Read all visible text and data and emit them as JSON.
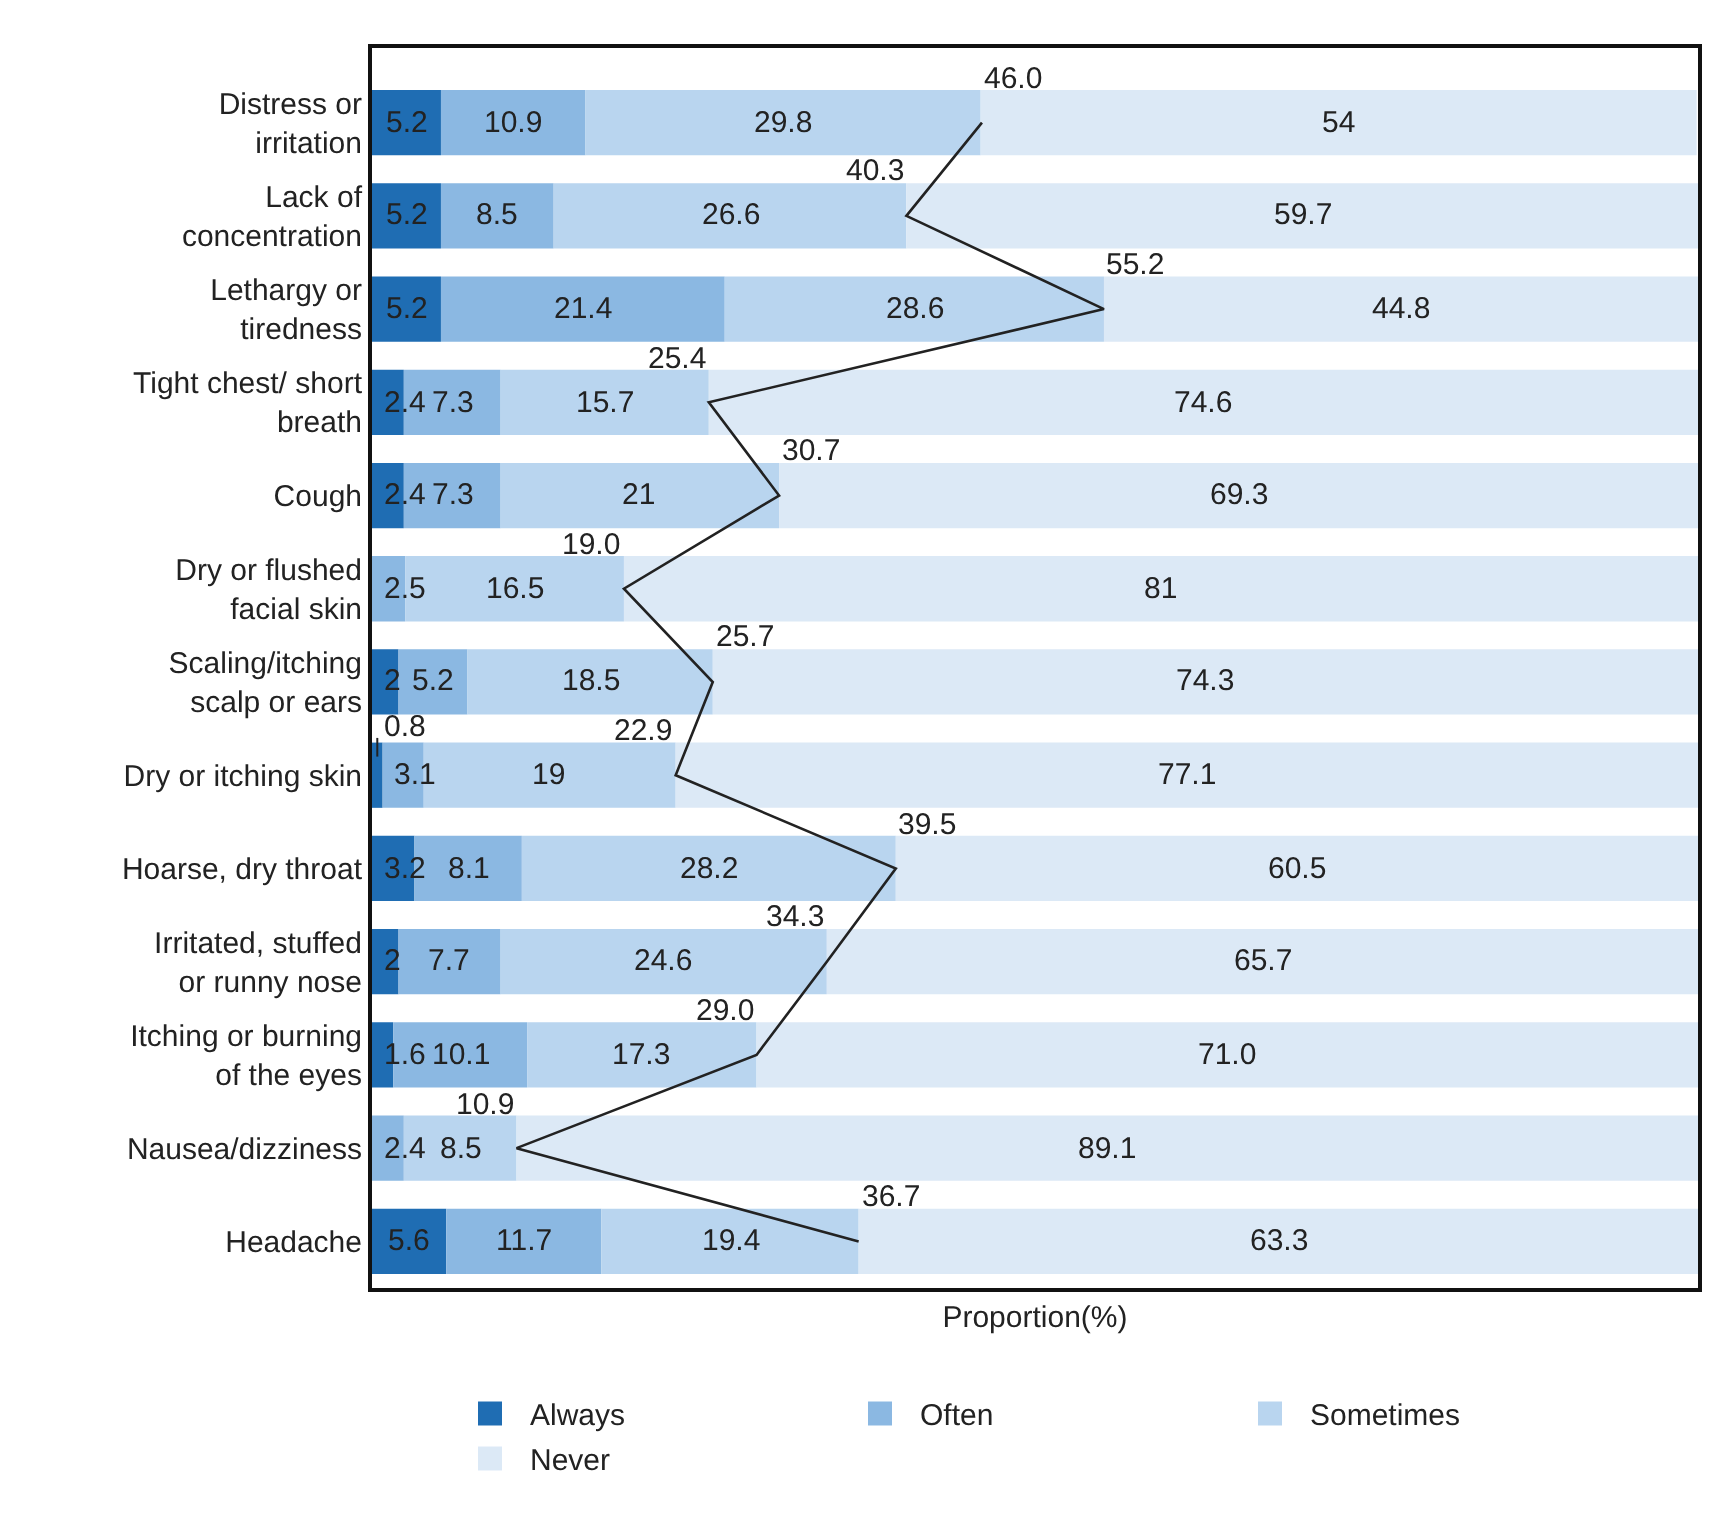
{
  "chart_data": {
    "type": "bar",
    "orientation": "horizontal",
    "stacked": true,
    "xlabel": "Proportion(%)",
    "xlim": [
      0,
      100
    ],
    "tick_labels": "y",
    "legend": "bottom",
    "categories": [
      "Distress or irritation",
      "Lack of concentration",
      "Lethargy or tiredness",
      "Tight chest/ short breath",
      "Cough",
      "Dry or flushed facial skin",
      "Scaling/itching scalp or ears",
      "Dry or itching skin",
      "Hoarse, dry throat",
      "Irritated, stuffed or runny nose",
      "Itching or burning of the eyes",
      "Nausea/dizziness",
      "Headache"
    ],
    "series": [
      {
        "name": "Always",
        "color": "#1f6db3",
        "values": [
          5.2,
          5.2,
          5.2,
          2.4,
          2.4,
          0,
          2,
          0.8,
          3.2,
          2,
          1.6,
          0,
          5.6
        ],
        "value_labels": [
          "5.2",
          "5.2",
          "5.2",
          "2.4",
          "2.4",
          null,
          "2",
          "0.8",
          "3.2",
          "2",
          "1.6",
          null,
          "5.6"
        ]
      },
      {
        "name": "Often",
        "color": "#8bb8e2",
        "values": [
          10.9,
          8.5,
          21.4,
          7.3,
          7.3,
          2.5,
          5.2,
          3.1,
          8.1,
          7.7,
          10.1,
          2.4,
          11.7
        ],
        "value_labels": [
          "10.9",
          "8.5",
          "21.4",
          "7.3",
          "7.3",
          "2.5",
          "5.2",
          "3.1",
          "8.1",
          "7.7",
          "10.1",
          "2.4",
          "11.7"
        ]
      },
      {
        "name": "Sometimes",
        "color": "#b9d5ef",
        "values": [
          29.8,
          26.6,
          28.6,
          15.7,
          21,
          16.5,
          18.5,
          19,
          28.2,
          24.6,
          17.3,
          8.5,
          19.4
        ],
        "value_labels": [
          "29.8",
          "26.6",
          "28.6",
          "15.7",
          "21",
          "16.5",
          "18.5",
          "19",
          "28.2",
          "24.6",
          "17.3",
          "8.5",
          "19.4"
        ]
      },
      {
        "name": "Never",
        "color": "#dce9f6",
        "values": [
          54,
          59.7,
          44.8,
          74.6,
          69.3,
          81,
          74.3,
          77.1,
          60.5,
          65.7,
          71.0,
          89.1,
          63.3
        ],
        "value_labels": [
          "54",
          "59.7",
          "44.8",
          "74.6",
          "69.3",
          "81",
          "74.3",
          "77.1",
          "60.5",
          "65.7",
          "71.0",
          "89.1",
          "63.3"
        ]
      },
      {
        "type": "line",
        "color": "#222222",
        "values": [
          46.0,
          40.3,
          55.2,
          25.4,
          30.7,
          19.0,
          25.7,
          22.9,
          39.5,
          34.3,
          29.0,
          10.9,
          36.7
        ],
        "value_labels": [
          "46.0",
          "40.3",
          "55.2",
          "25.4",
          "30.7",
          "19.0",
          "25.7",
          "22.9",
          "39.5",
          "34.3",
          "29.0",
          "10.9",
          "36.7"
        ]
      }
    ]
  }
}
